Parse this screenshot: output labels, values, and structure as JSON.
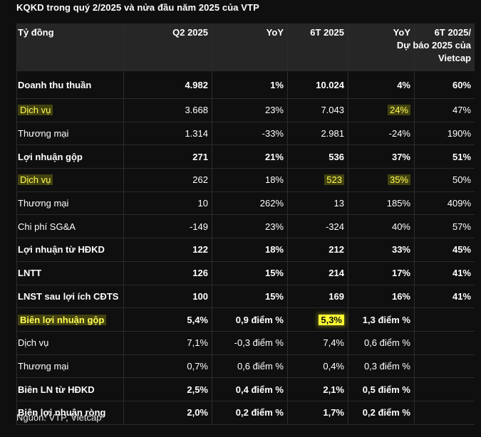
{
  "title": "KQKD trong quý 2/2025 và nửa đầu năm 2025 của VTP",
  "headers": [
    "Tỷ đồng",
    "Q2 2025",
    "YoY",
    "6T 2025",
    "YoY",
    "6T 2025/ Dự báo 2025 của Vietcap"
  ],
  "header_last_lines": [
    "6T 2025/",
    "Dự báo 2025 của",
    "Vietcap"
  ],
  "rows": [
    {
      "label": "Doanh thu thuần",
      "q2": "4.982",
      "yoy": "1%",
      "h1": "10.024",
      "yoy2": "4%",
      "fc": "60%",
      "bold": true
    },
    {
      "label": "Dịch vụ",
      "q2": "3.668",
      "yoy": "23%",
      "h1": "7.043",
      "yoy2": "24%",
      "fc": "47%"
    },
    {
      "label": "Thương mại",
      "q2": "1.314",
      "yoy": "-33%",
      "h1": "2.981",
      "yoy2": "-24%",
      "fc": "190%"
    },
    {
      "label": "Lợi nhuận gộp",
      "q2": "271",
      "yoy": "21%",
      "h1": "536",
      "yoy2": "37%",
      "fc": "51%",
      "bold": true
    },
    {
      "label": "Dịch vụ",
      "q2": "262",
      "yoy": "18%",
      "h1": "523",
      "yoy2": "35%",
      "fc": "50%"
    },
    {
      "label": "Thương mại",
      "q2": "10",
      "yoy": "262%",
      "h1": "13",
      "yoy2": "185%",
      "fc": "409%"
    },
    {
      "label": "Chi phí SG&A",
      "q2": "-149",
      "yoy": "23%",
      "h1": "-324",
      "yoy2": "40%",
      "fc": "57%"
    },
    {
      "label": "Lợi nhuận từ HĐKD",
      "q2": "122",
      "yoy": "18%",
      "h1": "212",
      "yoy2": "33%",
      "fc": "45%",
      "bold": true
    },
    {
      "label": "LNTT",
      "q2": "126",
      "yoy": "15%",
      "h1": "214",
      "yoy2": "17%",
      "fc": "41%",
      "bold": true
    },
    {
      "label": "LNST sau lợi ích CĐTS",
      "q2": "100",
      "yoy": "15%",
      "h1": "169",
      "yoy2": "16%",
      "fc": "41%",
      "bold": true
    },
    {
      "label": "Biên lợi nhuận gộp",
      "q2": "5,4%",
      "yoy": "0,9 điểm %",
      "h1": "5,3%",
      "yoy2": "1,3 điểm %",
      "fc": "",
      "bold": true
    },
    {
      "label": "Dịch vụ",
      "q2": "7,1%",
      "yoy": "-0,3 điểm %",
      "h1": "7,4%",
      "yoy2": "0,6 điểm %",
      "fc": ""
    },
    {
      "label": "Thương mại",
      "q2": "0,7%",
      "yoy": "0,6 điểm %",
      "h1": "0,4%",
      "yoy2": "0,3 điểm %",
      "fc": ""
    },
    {
      "label": "Biên LN từ HĐKD",
      "q2": "2,5%",
      "yoy": "0,4 điểm %",
      "h1": "2,1%",
      "yoy2": "0,5 điểm %",
      "fc": "",
      "bold": true
    },
    {
      "label": "Biên lợi nhuận ròng",
      "q2": "2,0%",
      "yoy": "0,2 điểm %",
      "h1": "1,7%",
      "yoy2": "0,2 điểm %",
      "fc": "",
      "bold": true
    }
  ],
  "highlight_color": "#ffff33",
  "source": "Nguồn: VTP, Vietcap"
}
